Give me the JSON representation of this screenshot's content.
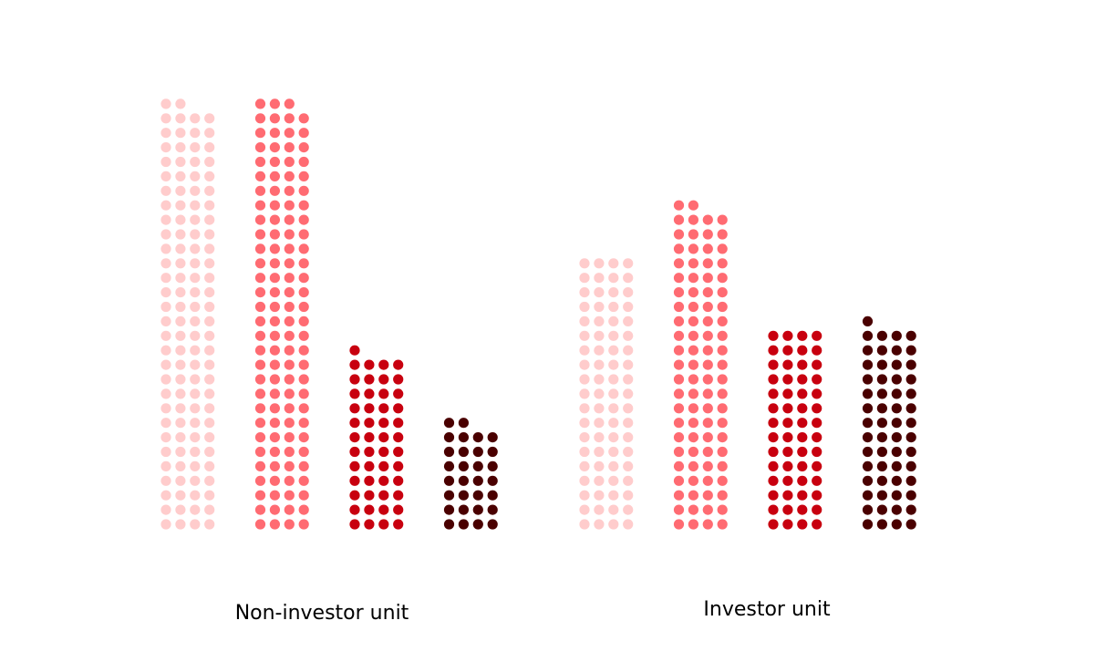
{
  "chart_data": {
    "type": "waffle-column",
    "title": "",
    "dots_per_row": 4,
    "categories": [
      "Non-investor unit",
      "Investor unit"
    ],
    "series_colors": [
      "#ffcccc",
      "#ff6b72",
      "#c8000f",
      "#4a0000"
    ],
    "groups": [
      {
        "label": "Non-investor unit",
        "dot_counts": [
          118,
          119,
          49,
          30
        ]
      },
      {
        "label": "Investor unit",
        "dot_counts": [
          76,
          90,
          56,
          57
        ]
      }
    ]
  }
}
